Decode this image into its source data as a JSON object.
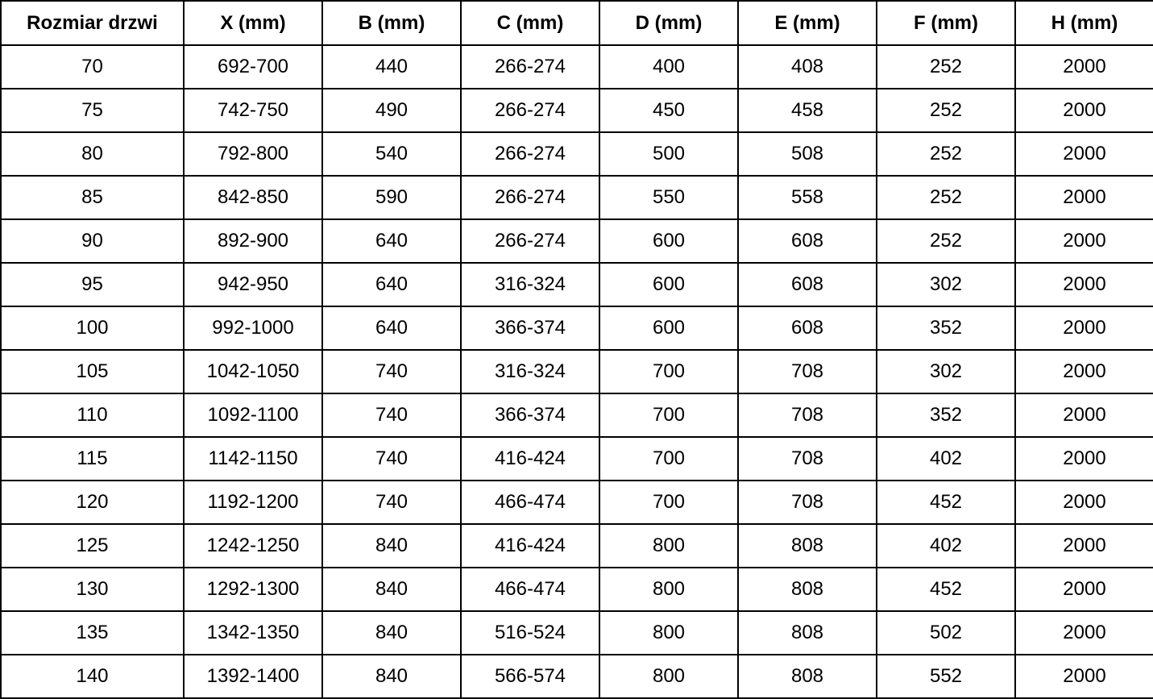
{
  "colors": {
    "border": "#000000",
    "text": "#000000",
    "background": "#ffffff"
  },
  "chart_data": {
    "type": "table",
    "columns": [
      "Rozmiar drzwi",
      "X (mm)",
      "B (mm)",
      "C (mm)",
      "D (mm)",
      "E (mm)",
      "F (mm)",
      "H (mm)"
    ],
    "rows": [
      [
        "70",
        "692-700",
        "440",
        "266-274",
        "400",
        "408",
        "252",
        "2000"
      ],
      [
        "75",
        "742-750",
        "490",
        "266-274",
        "450",
        "458",
        "252",
        "2000"
      ],
      [
        "80",
        "792-800",
        "540",
        "266-274",
        "500",
        "508",
        "252",
        "2000"
      ],
      [
        "85",
        "842-850",
        "590",
        "266-274",
        "550",
        "558",
        "252",
        "2000"
      ],
      [
        "90",
        "892-900",
        "640",
        "266-274",
        "600",
        "608",
        "252",
        "2000"
      ],
      [
        "95",
        "942-950",
        "640",
        "316-324",
        "600",
        "608",
        "302",
        "2000"
      ],
      [
        "100",
        "992-1000",
        "640",
        "366-374",
        "600",
        "608",
        "352",
        "2000"
      ],
      [
        "105",
        "1042-1050",
        "740",
        "316-324",
        "700",
        "708",
        "302",
        "2000"
      ],
      [
        "110",
        "1092-1100",
        "740",
        "366-374",
        "700",
        "708",
        "352",
        "2000"
      ],
      [
        "115",
        "1142-1150",
        "740",
        "416-424",
        "700",
        "708",
        "402",
        "2000"
      ],
      [
        "120",
        "1192-1200",
        "740",
        "466-474",
        "700",
        "708",
        "452",
        "2000"
      ],
      [
        "125",
        "1242-1250",
        "840",
        "416-424",
        "800",
        "808",
        "402",
        "2000"
      ],
      [
        "130",
        "1292-1300",
        "840",
        "466-474",
        "800",
        "808",
        "452",
        "2000"
      ],
      [
        "135",
        "1342-1350",
        "840",
        "516-524",
        "800",
        "808",
        "502",
        "2000"
      ],
      [
        "140",
        "1392-1400",
        "840",
        "566-574",
        "800",
        "808",
        "552",
        "2000"
      ]
    ]
  }
}
